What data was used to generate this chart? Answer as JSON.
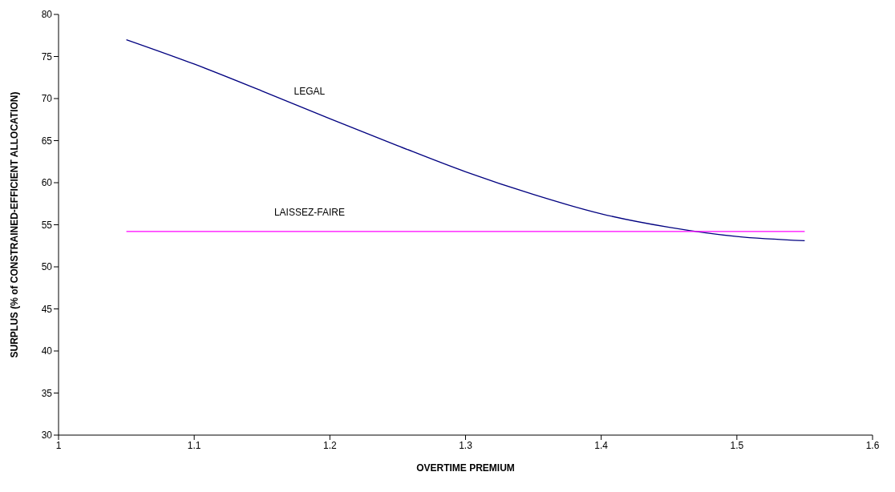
{
  "chart_data": {
    "type": "line",
    "xlabel": "OVERTIME PREMIUM",
    "ylabel": "SURPLUS (% of CONSTRAINED-EFFICIENT ALLOCATION)",
    "xlim": [
      1,
      1.6
    ],
    "xticks": [
      1,
      1.1,
      1.2,
      1.3,
      1.4,
      1.5,
      1.6
    ],
    "ylim": [
      30,
      80
    ],
    "yticks": [
      30,
      35,
      40,
      45,
      50,
      55,
      60,
      65,
      70,
      75,
      80
    ],
    "grid": false,
    "legend": false,
    "marker": "none",
    "line_style": "solid",
    "series": [
      {
        "name": "LEGAL",
        "color": "#000080",
        "x": [
          1.05,
          1.1,
          1.15,
          1.2,
          1.25,
          1.3,
          1.35,
          1.4,
          1.45,
          1.5,
          1.55
        ],
        "values": [
          77,
          74.1,
          70.9,
          67.6,
          64.4,
          61.3,
          58.6,
          56.3,
          54.7,
          53.6,
          53.1
        ]
      },
      {
        "name": "LAISSEZ-FAIRE",
        "color": "#ff00ff",
        "x": [
          1.05,
          1.55
        ],
        "values": [
          54.2,
          54.2
        ]
      }
    ]
  }
}
